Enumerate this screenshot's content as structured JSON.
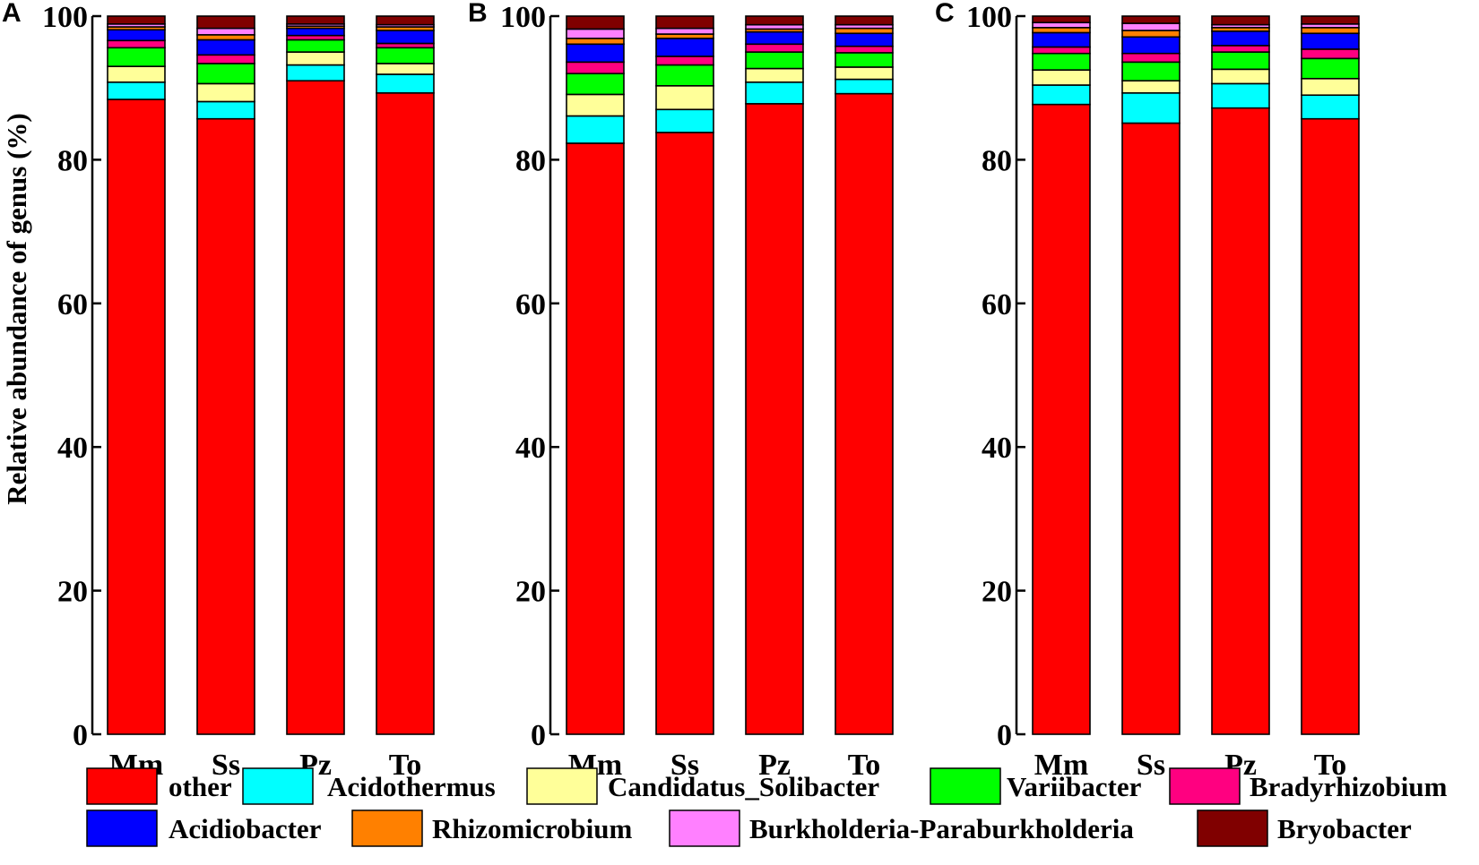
{
  "chart_data": {
    "type": "bar",
    "stacked": true,
    "ylabel": "Relative abundance of genus (%)",
    "ylim": [
      0,
      100
    ],
    "yticks": [
      0,
      20,
      40,
      60,
      80,
      100
    ],
    "categories": [
      "Mm",
      "Ss",
      "Pz",
      "To"
    ],
    "genera": [
      {
        "name": "other",
        "color": "#ff0000"
      },
      {
        "name": "Acidothermus",
        "color": "#00ffff"
      },
      {
        "name": "Candidatus_Solibacter",
        "color": "#ffff99"
      },
      {
        "name": "Variibacter",
        "color": "#00ff00"
      },
      {
        "name": "Bradyrhizobium",
        "color": "#ff0080"
      },
      {
        "name": "Acidiobacter",
        "color": "#0000ff"
      },
      {
        "name": "Rhizomicrobium",
        "color": "#ff8000"
      },
      {
        "name": "Burkholderia-Paraburkholderia",
        "color": "#ff80ff"
      },
      {
        "name": "Bryobacter",
        "color": "#800000"
      }
    ],
    "legend_order": [
      [
        "other",
        "Acidothermus",
        "Candidatus_Solibacter",
        "Variibacter",
        "Bradyrhizobium"
      ],
      [
        "Acidiobacter",
        "Rhizomicrobium",
        "Burkholderia-Paraburkholderia",
        "Bryobacter"
      ]
    ],
    "panels": [
      {
        "letter": "A",
        "series": [
          {
            "name": "other",
            "values": [
              88.4,
              85.7,
              91.0,
              89.3
            ]
          },
          {
            "name": "Acidothermus",
            "values": [
              2.4,
              2.4,
              2.2,
              2.6
            ]
          },
          {
            "name": "Candidatus_Solibacter",
            "values": [
              2.2,
              2.5,
              1.8,
              1.5
            ]
          },
          {
            "name": "Variibacter",
            "values": [
              2.6,
              2.8,
              1.7,
              2.2
            ]
          },
          {
            "name": "Bradyrhizobium",
            "values": [
              1.0,
              1.2,
              0.6,
              0.6
            ]
          },
          {
            "name": "Acidiobacter",
            "values": [
              1.5,
              2.1,
              1.0,
              1.8
            ]
          },
          {
            "name": "Rhizomicrobium",
            "values": [
              0.4,
              0.7,
              0.3,
              0.5
            ]
          },
          {
            "name": "Burkholderia-Paraburkholderia",
            "values": [
              0.4,
              0.9,
              0.3,
              0.3
            ]
          },
          {
            "name": "Bryobacter",
            "values": [
              1.1,
              1.7,
              1.1,
              1.2
            ]
          }
        ]
      },
      {
        "letter": "B",
        "series": [
          {
            "name": "other",
            "values": [
              82.3,
              83.8,
              87.8,
              89.2
            ]
          },
          {
            "name": "Acidothermus",
            "values": [
              3.8,
              3.2,
              3.0,
              2.0
            ]
          },
          {
            "name": "Candidatus_Solibacter",
            "values": [
              3.0,
              3.3,
              1.9,
              1.7
            ]
          },
          {
            "name": "Variibacter",
            "values": [
              2.9,
              2.9,
              2.3,
              2.0
            ]
          },
          {
            "name": "Bradyrhizobium",
            "values": [
              1.6,
              1.2,
              1.1,
              0.9
            ]
          },
          {
            "name": "Acidiobacter",
            "values": [
              2.5,
              2.5,
              1.7,
              1.8
            ]
          },
          {
            "name": "Rhizomicrobium",
            "values": [
              0.8,
              0.6,
              0.4,
              0.7
            ]
          },
          {
            "name": "Burkholderia-Paraburkholderia",
            "values": [
              1.3,
              0.8,
              0.6,
              0.5
            ]
          },
          {
            "name": "Bryobacter",
            "values": [
              1.8,
              1.7,
              1.2,
              1.2
            ]
          }
        ]
      },
      {
        "letter": "C",
        "series": [
          {
            "name": "other",
            "values": [
              87.7,
              85.1,
              87.2,
              85.7
            ]
          },
          {
            "name": "Acidothermus",
            "values": [
              2.7,
              4.2,
              3.4,
              3.3
            ]
          },
          {
            "name": "Candidatus_Solibacter",
            "values": [
              2.1,
              1.7,
              2.0,
              2.3
            ]
          },
          {
            "name": "Variibacter",
            "values": [
              2.3,
              2.6,
              2.4,
              2.8
            ]
          },
          {
            "name": "Bradyrhizobium",
            "values": [
              0.9,
              1.2,
              0.9,
              1.3
            ]
          },
          {
            "name": "Acidiobacter",
            "values": [
              2.0,
              2.3,
              2.0,
              2.2
            ]
          },
          {
            "name": "Rhizomicrobium",
            "values": [
              0.7,
              0.9,
              0.5,
              0.8
            ]
          },
          {
            "name": "Burkholderia-Paraburkholderia",
            "values": [
              0.7,
              1.0,
              0.4,
              0.5
            ]
          },
          {
            "name": "Bryobacter",
            "values": [
              0.9,
              1.0,
              1.2,
              1.1
            ]
          }
        ]
      }
    ]
  }
}
